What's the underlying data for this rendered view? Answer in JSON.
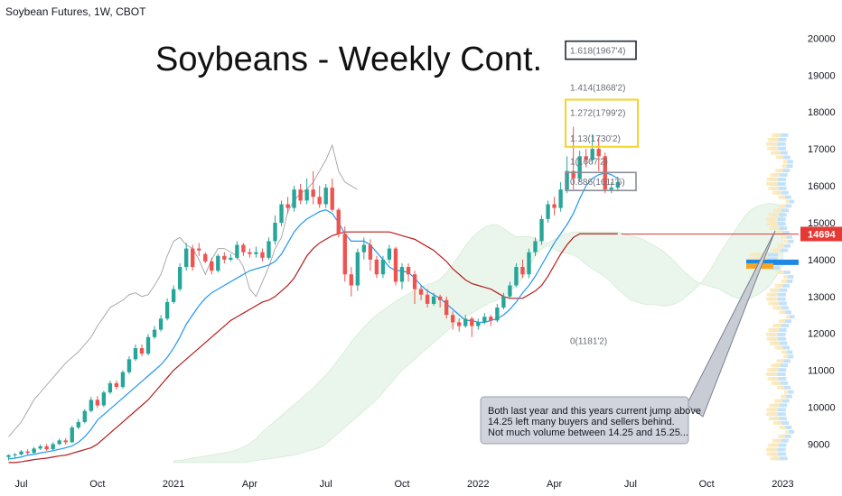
{
  "header": {
    "symbol": "Soybean Futures, 1W, CBOT"
  },
  "chart_data": {
    "type": "candlestick",
    "title": "Soybeans - Weekly Cont.",
    "ylim": [
      8400,
      20400
    ],
    "y_ticks": [
      "20000",
      "19000",
      "18000",
      "17000",
      "16000",
      "15000",
      "14000",
      "13000",
      "12000",
      "11000",
      "10000",
      "9000"
    ],
    "y_tick_values": [
      20000,
      19000,
      18000,
      17000,
      16000,
      15000,
      14000,
      13000,
      12000,
      11000,
      10000,
      9000
    ],
    "x_ticks": [
      "Jul",
      "Oct",
      "2021",
      "Apr",
      "Jul",
      "Oct",
      "2022",
      "Apr",
      "Jul",
      "Oct",
      "2023"
    ],
    "x_tick_index": [
      2,
      14,
      26,
      38,
      50,
      62,
      74,
      86,
      98,
      110,
      122
    ],
    "bars_total": 125,
    "candles": [
      [
        8650,
        8700,
        8560,
        8720
      ],
      [
        8700,
        8720,
        8630,
        8760
      ],
      [
        8720,
        8800,
        8690,
        8840
      ],
      [
        8800,
        8760,
        8700,
        8860
      ],
      [
        8760,
        8880,
        8740,
        8920
      ],
      [
        8880,
        8940,
        8840,
        8990
      ],
      [
        8940,
        8860,
        8820,
        9000
      ],
      [
        8860,
        9000,
        8830,
        9050
      ],
      [
        9000,
        9100,
        8970,
        9150
      ],
      [
        9100,
        9050,
        8990,
        9160
      ],
      [
        9050,
        9450,
        9030,
        9500
      ],
      [
        9450,
        9600,
        9400,
        9680
      ],
      [
        9600,
        9900,
        9560,
        9950
      ],
      [
        9900,
        10200,
        9860,
        10280
      ],
      [
        10200,
        10050,
        9980,
        10300
      ],
      [
        10050,
        10400,
        10000,
        10450
      ],
      [
        10400,
        10650,
        10350,
        10720
      ],
      [
        10650,
        10550,
        10480,
        10720
      ],
      [
        10550,
        10950,
        10500,
        11000
      ],
      [
        10950,
        11300,
        10900,
        11380
      ],
      [
        11300,
        11600,
        11250,
        11700
      ],
      [
        11600,
        11450,
        11380,
        11700
      ],
      [
        11450,
        11900,
        11400,
        11980
      ],
      [
        11900,
        12100,
        11850,
        12200
      ],
      [
        12100,
        12400,
        12050,
        12500
      ],
      [
        12400,
        12850,
        12350,
        12950
      ],
      [
        12850,
        13200,
        12800,
        13300
      ],
      [
        13200,
        13800,
        13150,
        13900
      ],
      [
        13800,
        14300,
        13700,
        14450
      ],
      [
        14300,
        13800,
        13700,
        14400
      ],
      [
        14300,
        14250,
        14100,
        14450
      ],
      [
        14150,
        13950,
        13900,
        14200
      ],
      [
        13950,
        13700,
        13600,
        14050
      ],
      [
        13700,
        14100,
        13650,
        14150
      ],
      [
        14100,
        14000,
        13900,
        14200
      ],
      [
        14000,
        14050,
        13950,
        14150
      ],
      [
        14050,
        14400,
        14000,
        14500
      ],
      [
        14400,
        14200,
        14100,
        14450
      ],
      [
        14200,
        14150,
        14050,
        14300
      ],
      [
        14150,
        14200,
        14050,
        14350
      ],
      [
        14200,
        14050,
        13950,
        14300
      ],
      [
        14050,
        14500,
        14000,
        14600
      ],
      [
        14500,
        15000,
        14400,
        15200
      ],
      [
        15000,
        15500,
        14900,
        15600
      ],
      [
        15500,
        15400,
        15250,
        15700
      ],
      [
        15400,
        15900,
        15300,
        16000
      ],
      [
        15900,
        15600,
        15500,
        16050
      ],
      [
        15600,
        15900,
        15500,
        16200
      ],
      [
        15900,
        15700,
        15500,
        16400
      ],
      [
        15700,
        15500,
        15400,
        16000
      ],
      [
        15500,
        15950,
        15400,
        16050
      ],
      [
        15950,
        15350,
        15300,
        16200
      ],
      [
        15350,
        14700,
        14600,
        15400
      ],
      [
        14700,
        13600,
        13400,
        14900
      ],
      [
        13600,
        13300,
        13000,
        13800
      ],
      [
        13300,
        14200,
        13150,
        14300
      ],
      [
        14200,
        14400,
        14000,
        14600
      ],
      [
        14400,
        14000,
        13700,
        14550
      ],
      [
        14000,
        13600,
        13500,
        14100
      ],
      [
        13600,
        14000,
        13500,
        14100
      ],
      [
        14000,
        14300,
        13900,
        14400
      ],
      [
        14300,
        13400,
        13300,
        14350
      ],
      [
        13400,
        13800,
        13200,
        13900
      ],
      [
        13800,
        13600,
        13400,
        13900
      ],
      [
        13600,
        13200,
        12800,
        13700
      ],
      [
        13200,
        13050,
        12900,
        13300
      ],
      [
        13050,
        12800,
        12700,
        13200
      ],
      [
        12800,
        13000,
        12750,
        13100
      ],
      [
        13000,
        12900,
        12700,
        13050
      ],
      [
        12900,
        12500,
        12400,
        13000
      ],
      [
        12500,
        12300,
        12100,
        12600
      ],
      [
        12300,
        12200,
        12050,
        12400
      ],
      [
        12200,
        12400,
        12150,
        12500
      ],
      [
        12400,
        12200,
        11900,
        12450
      ],
      [
        12200,
        12300,
        12100,
        12400
      ],
      [
        12300,
        12450,
        12250,
        12550
      ],
      [
        12450,
        12350,
        12200,
        12500
      ],
      [
        12350,
        12700,
        12300,
        12800
      ],
      [
        12700,
        13000,
        12650,
        13100
      ],
      [
        13000,
        13300,
        12950,
        13400
      ],
      [
        13300,
        13800,
        13250,
        13900
      ],
      [
        13800,
        13600,
        13500,
        14000
      ],
      [
        13600,
        14200,
        13500,
        14300
      ],
      [
        14200,
        14500,
        14100,
        14600
      ],
      [
        14500,
        15100,
        14400,
        15200
      ],
      [
        15100,
        15500,
        15000,
        15600
      ],
      [
        15500,
        15400,
        15200,
        15700
      ],
      [
        15400,
        15900,
        15300,
        16100
      ],
      [
        15900,
        16400,
        15800,
        16800
      ],
      [
        16400,
        16200,
        15900,
        17600
      ],
      [
        16200,
        16800,
        16100,
        16950
      ],
      [
        16800,
        16700,
        16500,
        17000
      ],
      [
        16700,
        17000,
        16600,
        17400
      ],
      [
        17000,
        16800,
        16400,
        17300
      ],
      [
        16800,
        15900,
        15800,
        16900
      ],
      [
        15900,
        15950,
        15800,
        16100
      ],
      [
        15950,
        16100,
        15850,
        16250
      ]
    ],
    "tenkan": [
      8600,
      8620,
      8650,
      8700,
      8720,
      8760,
      8790,
      8820,
      8860,
      8900,
      8950,
      9050,
      9200,
      9400,
      9650,
      9800,
      9950,
      10100,
      10250,
      10400,
      10550,
      10700,
      10850,
      11000,
      11150,
      11350,
      11600,
      11900,
      12250,
      12500,
      12750,
      12950,
      13100,
      13200,
      13300,
      13400,
      13500,
      13600,
      13700,
      13750,
      13800,
      13850,
      13950,
      14150,
      14450,
      14750,
      14950,
      15100,
      15200,
      15300,
      15350,
      15250,
      15000,
      14700,
      14500,
      14500,
      14500,
      14400,
      14200,
      14000,
      13800,
      13700,
      13700,
      13650,
      13500,
      13300,
      13150,
      13050,
      12950,
      12800,
      12650,
      12500,
      12350,
      12350,
      12300,
      12300,
      12350,
      12400,
      12500,
      12650,
      12850,
      13100,
      13300,
      13550,
      13850,
      14150,
      14450,
      14700,
      14950,
      15250,
      15650,
      16000,
      16200,
      16300,
      16350,
      16300,
      16200
    ],
    "kijun": [
      8500,
      8500,
      8520,
      8550,
      8580,
      8600,
      8620,
      8650,
      8680,
      8700,
      8750,
      8800,
      8850,
      8900,
      9000,
      9150,
      9300,
      9450,
      9600,
      9750,
      9900,
      10050,
      10200,
      10400,
      10600,
      10800,
      11000,
      11150,
      11300,
      11450,
      11600,
      11750,
      11900,
      12050,
      12200,
      12350,
      12450,
      12550,
      12650,
      12750,
      12850,
      12900,
      13000,
      13150,
      13300,
      13500,
      13800,
      14100,
      14300,
      14450,
      14550,
      14650,
      14700,
      14750,
      14750,
      14750,
      14750,
      14750,
      14750,
      14750,
      14750,
      14700,
      14650,
      14600,
      14550,
      14450,
      14350,
      14250,
      14100,
      13950,
      13750,
      13600,
      13450,
      13350,
      13300,
      13250,
      13200,
      13100,
      13000,
      12950,
      12950,
      12950,
      13050,
      13150,
      13300,
      13550,
      13850,
      14150,
      14400,
      14600,
      14700,
      14700,
      14700,
      14700,
      14700,
      14700,
      14700
    ],
    "chikou": [
      9200,
      9400,
      9600,
      9900,
      10200,
      10400,
      10600,
      10800,
      11000,
      11200,
      11350,
      11500,
      11700,
      11900,
      12200,
      12450,
      12700,
      12800,
      12900,
      13050,
      13100,
      13000,
      13050,
      13300,
      13600,
      14100,
      14500,
      14600,
      14400,
      14300,
      14000,
      13600,
      14000,
      14300,
      14300,
      14200,
      14100,
      13800,
      13200,
      13000,
      13400,
      13800,
      14300,
      14600,
      15300,
      15600,
      15800,
      15900,
      16100,
      16400,
      16700,
      17100,
      16400,
      16100,
      16000,
      15900
    ],
    "last_price": "14694",
    "fib_levels": [
      {
        "label": "1.618(1967'4)",
        "value": 19675,
        "boxed": true
      },
      {
        "label": "1.414(1868'2)",
        "value": 18682
      },
      {
        "label": "1.272(1799'2)",
        "value": 17992
      },
      {
        "label": "1.13(1730'2)",
        "value": 17302
      },
      {
        "label": "1(1667'2)",
        "value": 16672
      },
      {
        "label": "0.886(1611'6)",
        "value": 16117,
        "boxed": true
      },
      {
        "label": "0(1181'2)",
        "value": 11812
      }
    ],
    "annotation": [
      "Both last year and this years current jump above",
      "  14.25 left many buyers and sellers behind.",
      "Not much volume between 14.25 and 15.25..."
    ],
    "colors": {
      "up": "#26a69a",
      "down": "#ef5350",
      "tenkan": "#2196f3",
      "kijun": "#b71c1c",
      "chikou": "#aaaaaa",
      "cloud_up": "#e8f5e9",
      "cloud_down": "#fdecea",
      "fib_box": "#f5d327",
      "dark_box": "#1f2937",
      "price_tag": "#e53935"
    }
  }
}
